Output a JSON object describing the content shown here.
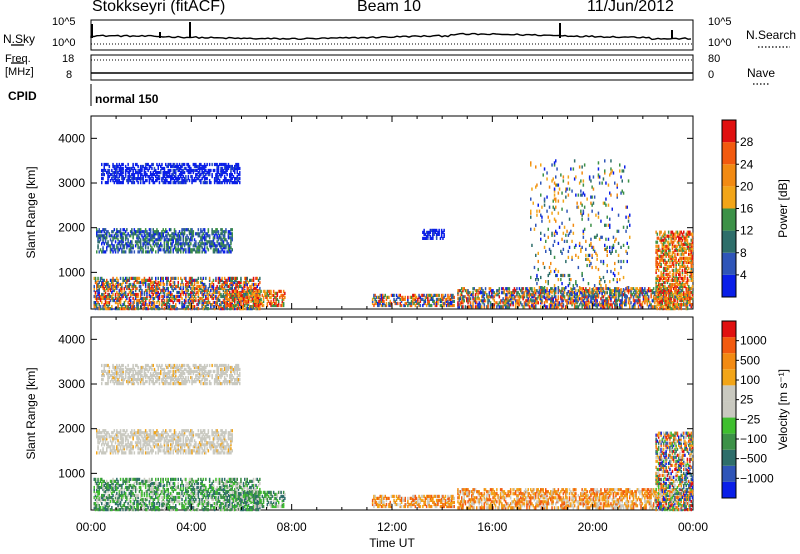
{
  "header": {
    "radar": "Stokkseyri (fitACF)",
    "beam": "Beam 10",
    "date": "11/Jun/2012"
  },
  "top_panels": {
    "nsky_label": "N.Sky",
    "nsearch_label": "N.Search",
    "nsky_ticks": [
      "10^5",
      "10^0"
    ],
    "nsearch_ticks": [
      "10^5",
      "10^0"
    ],
    "freq_label": "Freq.",
    "freq_unit": "[MHz]",
    "freq_ticks": [
      "18",
      "8"
    ],
    "nave_label": "Nave",
    "nave_ticks": [
      "80",
      "0"
    ],
    "cpid_label": "CPID",
    "cpid_value": "normal 150"
  },
  "colors": {
    "power_scale": [
      "#0a1fe8",
      "#2f55b8",
      "#2e6e6a",
      "#3c9147",
      "#f2a518",
      "#f28a12",
      "#f25a0f",
      "#e01010"
    ],
    "velocity_scale": [
      "#e01010",
      "#f25a0f",
      "#f28a12",
      "#f2a518",
      "#c9c9c0",
      "#c9c9c0",
      "#3fbf2f",
      "#3c9147",
      "#2e6e6a",
      "#2f55b8",
      "#0a1fe8"
    ]
  },
  "chart_data": [
    {
      "type": "heatmap",
      "ylabel": "Slant Range [km]",
      "yticks": [
        "1000",
        "2000",
        "3000",
        "4000"
      ],
      "ylim": [
        180,
        4500
      ],
      "xlim_hours": [
        0,
        24
      ],
      "colorbar": {
        "label": "Power [dB]",
        "ticks": [
          "4",
          "8",
          "12",
          "16",
          "20",
          "24",
          "28"
        ],
        "range": [
          0,
          32
        ]
      },
      "echo_regions": [
        {
          "t": [
            0.4,
            5.9
          ],
          "r": [
            3000,
            3450
          ],
          "level": "low"
        },
        {
          "t": [
            0.2,
            5.6
          ],
          "r": [
            1450,
            1950
          ],
          "level": "low-mid"
        },
        {
          "t": [
            0.1,
            6.7
          ],
          "r": [
            180,
            900
          ],
          "level": "mixed"
        },
        {
          "t": [
            5.4,
            7.7
          ],
          "r": [
            250,
            600
          ],
          "level": "high"
        },
        {
          "t": [
            11.2,
            14.5
          ],
          "r": [
            250,
            500
          ],
          "level": "mixed"
        },
        {
          "t": [
            13.2,
            14.1
          ],
          "r": [
            1750,
            1950
          ],
          "level": "low"
        },
        {
          "t": [
            14.6,
            23.9
          ],
          "r": [
            220,
            650
          ],
          "level": "mixed"
        },
        {
          "t": [
            17.5,
            21.5
          ],
          "r": [
            200,
            3500
          ],
          "level": "sparse"
        },
        {
          "t": [
            22.5,
            24.0
          ],
          "r": [
            180,
            1900
          ],
          "level": "high"
        }
      ]
    },
    {
      "type": "heatmap",
      "xlabel": "Time UT",
      "xticks": [
        "00:00",
        "04:00",
        "08:00",
        "12:00",
        "16:00",
        "20:00",
        "00:00"
      ],
      "ylabel": "Slant Range [km]",
      "yticks": [
        "1000",
        "2000",
        "3000",
        "4000"
      ],
      "ylim": [
        180,
        4500
      ],
      "colorbar": {
        "label": "Velocity [m s⁻¹]",
        "ticks": [
          "1000",
          "500",
          "100",
          "25",
          "−25",
          "−100",
          "−500",
          "−1000"
        ]
      },
      "echo_regions": [
        {
          "t": [
            0.4,
            5.9
          ],
          "r": [
            3000,
            3450
          ],
          "velocity": "near-zero"
        },
        {
          "t": [
            0.2,
            5.6
          ],
          "r": [
            1450,
            1950
          ],
          "velocity": "near-zero"
        },
        {
          "t": [
            0.1,
            6.7
          ],
          "r": [
            180,
            900
          ],
          "velocity": "positive"
        },
        {
          "t": [
            5.4,
            7.7
          ],
          "r": [
            250,
            600
          ],
          "velocity": "positive"
        },
        {
          "t": [
            11.2,
            14.5
          ],
          "r": [
            250,
            500
          ],
          "velocity": "negative"
        },
        {
          "t": [
            14.6,
            23.9
          ],
          "r": [
            220,
            650
          ],
          "velocity": "negative"
        },
        {
          "t": [
            22.5,
            24.0
          ],
          "r": [
            180,
            1900
          ],
          "velocity": "mixed"
        }
      ]
    }
  ]
}
